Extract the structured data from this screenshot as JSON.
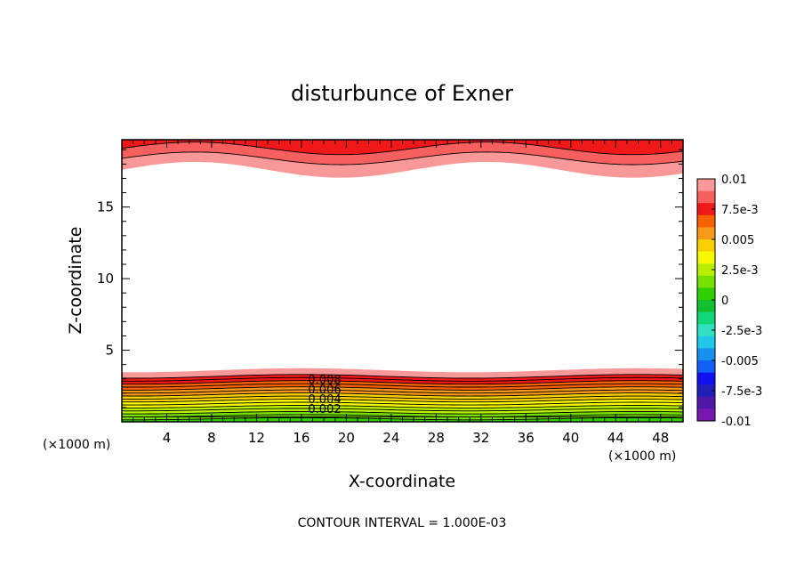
{
  "chart_data": {
    "type": "heatmap",
    "title": "disturbunce of Exner",
    "xlabel": "X-coordinate",
    "ylabel": "Z-coordinate",
    "x_unit": "(×1000 m)",
    "x_unit_right": "(×1000 m)",
    "xlim": [
      0,
      50
    ],
    "ylim": [
      0,
      19.7
    ],
    "x_ticks": [
      4,
      8,
      12,
      16,
      20,
      24,
      28,
      32,
      36,
      40,
      44,
      48
    ],
    "x_tick_labels": [
      "4",
      "8",
      "12",
      "16",
      "20",
      "24",
      "28",
      "32",
      "36",
      "40",
      "44",
      "48"
    ],
    "y_ticks": [
      5,
      10,
      15
    ],
    "y_tick_labels": [
      "5",
      "10",
      "15"
    ],
    "colorbar": {
      "range": [
        -0.01,
        0.01
      ],
      "step": 0.00125,
      "labels": [
        "0.01",
        "7.5e-3",
        "0.005",
        "2.5e-3",
        "0",
        "-2.5e-3",
        "-0.005",
        "-7.5e-3",
        "-0.01"
      ],
      "colors": [
        "#f89898",
        "#f86060",
        "#f01818",
        "#f86000",
        "#f89818",
        "#f8d000",
        "#f8f800",
        "#b8f000",
        "#78e000",
        "#30d000",
        "#10c030",
        "#10d878",
        "#30e0c0",
        "#20c8e8",
        "#1890f0",
        "#1060f8",
        "#1010f0",
        "#2020b8",
        "#5018a8",
        "#7818b0"
      ]
    },
    "contour_labels": [
      "0.008",
      "0.006",
      "0.004",
      "0.002"
    ],
    "contour_interval_text": "CONTOUR INTERVAL = 1.000E-03",
    "lower_layer_contour_levels": [
      0.0085,
      0.0075,
      0.007,
      0.0065,
      0.006,
      0.0055,
      0.005,
      0.0045,
      0.004,
      0.0035,
      0.003,
      0.0025,
      0.002,
      0.0015,
      0.001,
      0.0005
    ],
    "upper_layer_contour_levels": [
      0.0085,
      0.0095,
      0.0105
    ]
  }
}
